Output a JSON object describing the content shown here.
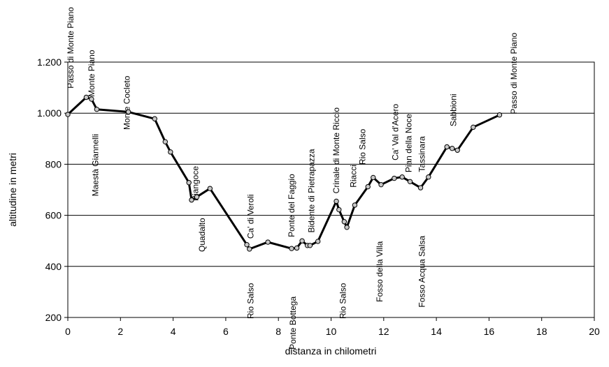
{
  "chart_data": {
    "type": "line",
    "xlabel": "distanza in chilometri",
    "ylabel": "altitudine  in metri",
    "xlim": [
      0,
      20
    ],
    "ylim": [
      200,
      1200
    ],
    "x_ticks": [
      "0",
      "2",
      "4",
      "6",
      "8",
      "10",
      "12",
      "14",
      "16",
      "18",
      "20"
    ],
    "y_ticks": [
      "200",
      "400",
      "600",
      "800",
      "1.000",
      "1.200"
    ],
    "grid": "horizontal",
    "series": [
      {
        "x": [
          0,
          0.7,
          0.9,
          1.1,
          2.3,
          3.3,
          3.7,
          3.9,
          4.6,
          4.7,
          4.9,
          5.4,
          6.8,
          6.9,
          7.6,
          8.5,
          8.7,
          8.9,
          9.1,
          9.2,
          9.5,
          10.2,
          10.3,
          10.5,
          10.6,
          10.9,
          11.4,
          11.6,
          11.9,
          12.4,
          12.7,
          13.0,
          13.4,
          13.7,
          14.4,
          14.6,
          14.8,
          15.4,
          16.4
        ],
        "y": [
          995,
          1062,
          1055,
          1015,
          1005,
          978,
          888,
          848,
          728,
          660,
          672,
          705,
          485,
          468,
          495,
          470,
          472,
          500,
          482,
          482,
          498,
          655,
          622,
          575,
          553,
          640,
          712,
          748,
          720,
          745,
          750,
          732,
          708,
          750,
          868,
          862,
          855,
          945,
          993
        ]
      }
    ],
    "annotations": [
      "Passo di Monte Piano",
      "Monte Piano",
      "Maestà Giannelli",
      "Monte Cocleto",
      "Piangoce",
      "Quadalto",
      "Ca' di Veroli",
      "Rio Salso",
      "Ponte del Faggio",
      "Ponte Bottega",
      "Bidente di Pietrapazza",
      "Crinale di Monte Riccio",
      "Rio Salso",
      "Riacci",
      "Rio Salso",
      "Fosso della Villa",
      "Ca' Val d'Acero",
      "Pian della Noce",
      "Tassinara",
      "Fosso Acqua Salsa",
      "Sabbioni",
      "Passo di Monte Piano"
    ]
  }
}
